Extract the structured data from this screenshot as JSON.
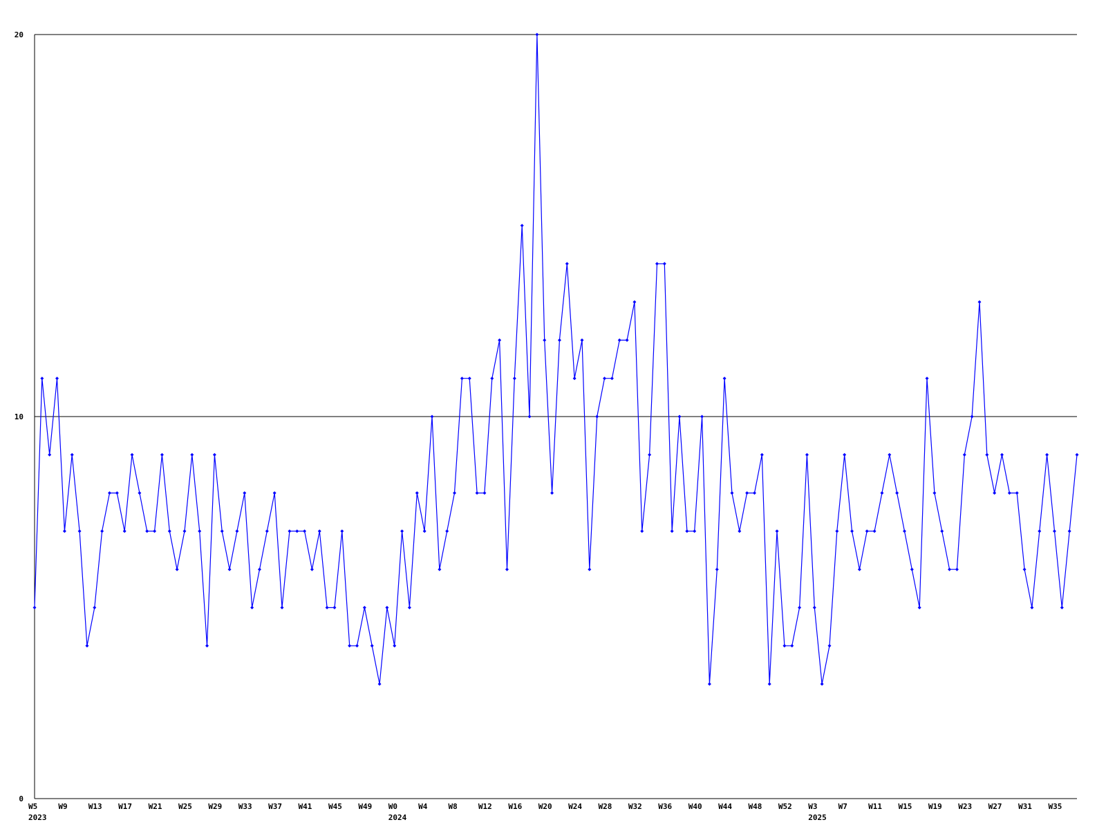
{
  "chart_data": {
    "type": "line",
    "title": "",
    "xlabel": "",
    "ylabel": "",
    "ylim": [
      0,
      20
    ],
    "y_ticks": [
      0,
      10,
      20
    ],
    "y_tick_labels": [
      "0",
      "10",
      "20"
    ],
    "grid": "horizontal lines at 10 and 20",
    "tick_every_weeks": 4,
    "line_color": "#0000ff",
    "marker_color": "#0000ff",
    "axis_color": "#000000",
    "segments": [
      {
        "year": "2023",
        "first_week": 5,
        "values": [
          5,
          11,
          9,
          11,
          7,
          9,
          7,
          4,
          5,
          7,
          8,
          8,
          7,
          9,
          8,
          7,
          7,
          9,
          7,
          6,
          7,
          9,
          7,
          4,
          9,
          7,
          6,
          7,
          8,
          5,
          6,
          7,
          8,
          5,
          7,
          7,
          7,
          6,
          7,
          5,
          5,
          7,
          4,
          4,
          5,
          4,
          3,
          5
        ]
      },
      {
        "year": "2024",
        "first_week": 0,
        "values": [
          4,
          7,
          5,
          8,
          7,
          10,
          6,
          7,
          8,
          11,
          11,
          8,
          8,
          11,
          12,
          6,
          11,
          15,
          10,
          20,
          12,
          8,
          12,
          14,
          11,
          12,
          6,
          10,
          11,
          11,
          12,
          12,
          13,
          7,
          9,
          14,
          14,
          7,
          10,
          7,
          7,
          10,
          3,
          6,
          11,
          8,
          7,
          8,
          8,
          9,
          3,
          7,
          4
        ]
      },
      {
        "year": "2025",
        "first_week": 0,
        "values": [
          4,
          5,
          9,
          5,
          3,
          4,
          7,
          9,
          7,
          6,
          7,
          7,
          8,
          9,
          8,
          7,
          6,
          5,
          11,
          8,
          7,
          6,
          6,
          9,
          10,
          13,
          9,
          8,
          9,
          8,
          8,
          6,
          5,
          7,
          9,
          7,
          5,
          7,
          9
        ]
      }
    ]
  }
}
